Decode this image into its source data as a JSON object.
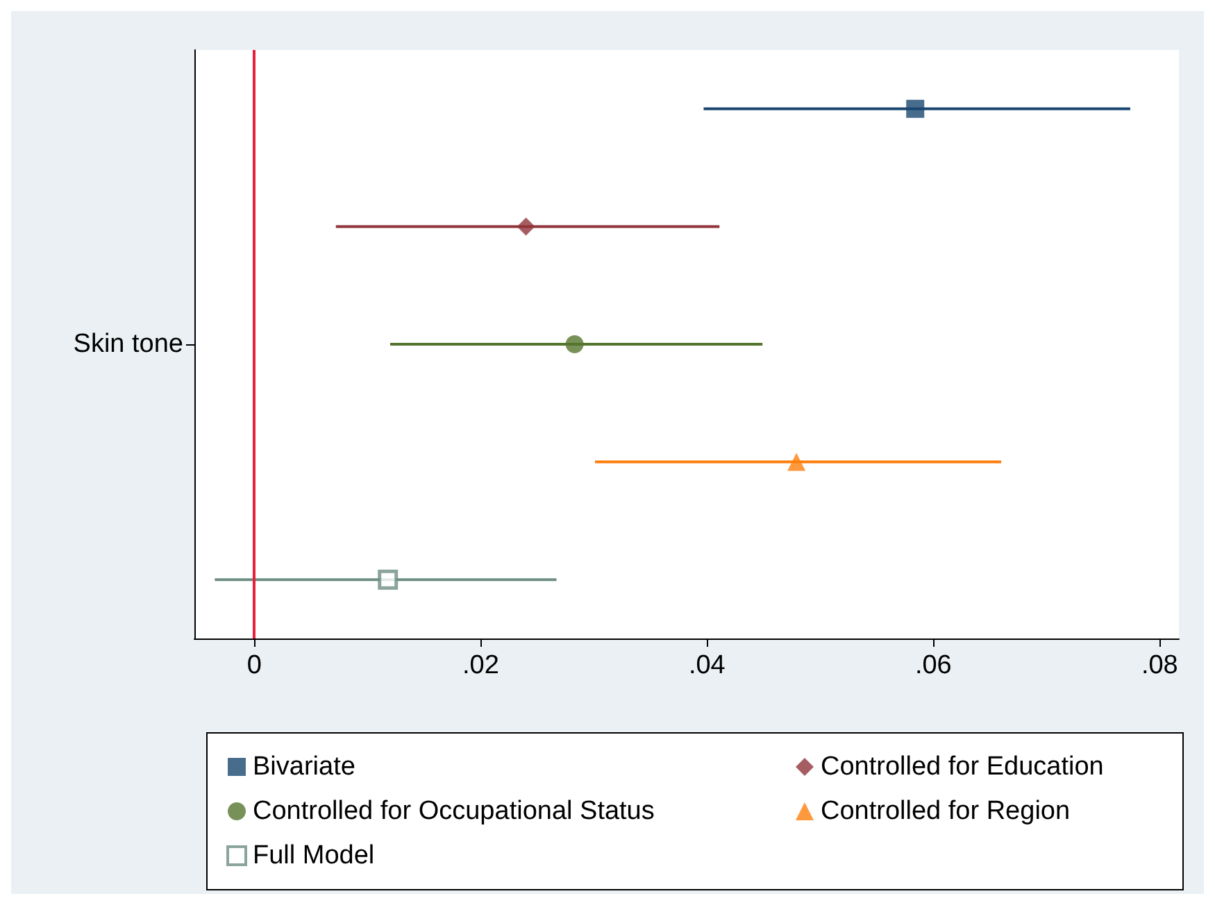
{
  "chart_data": {
    "type": "scatter",
    "orientation": "horizontal",
    "categories": [
      null,
      null,
      "Skin tone",
      null,
      null
    ],
    "series": [
      {
        "name": "Bivariate",
        "color": "#1a476f",
        "marker": "square",
        "values": [
          0.0584,
          null,
          null,
          null,
          null
        ],
        "errors": [
          [
            0.0397,
            0.0774
          ],
          null,
          null,
          null,
          null
        ]
      },
      {
        "name": "Controlled for Education",
        "color": "#90353b",
        "marker": "diamond",
        "values": [
          null,
          0.024,
          null,
          null,
          null
        ],
        "errors": [
          null,
          [
            0.0072,
            0.0411
          ],
          null,
          null,
          null
        ]
      },
      {
        "name": "Controlled for Occupational Status",
        "color": "#55752f",
        "marker": "circle",
        "values": [
          null,
          null,
          0.0283,
          null,
          null
        ],
        "errors": [
          null,
          null,
          [
            0.012,
            0.0449
          ],
          null,
          null
        ]
      },
      {
        "name": "Controlled for Region",
        "color": "#ff7f0e",
        "marker": "triangle",
        "values": [
          null,
          null,
          null,
          0.0479,
          null
        ],
        "errors": [
          null,
          null,
          null,
          [
            0.0301,
            0.066
          ],
          null
        ]
      },
      {
        "name": "Full Model",
        "color": "#6e8e84",
        "marker": "square",
        "values": [
          null,
          null,
          null,
          null,
          0.0118
        ],
        "errors": [
          null,
          null,
          null,
          null,
          [
            -0.0035,
            0.0267
          ]
        ]
      }
    ],
    "xlim": [
      -0.0053,
      0.0817
    ],
    "xticks": [
      0,
      {
        "value": 0.02,
        "label": ".02"
      },
      {
        "value": 0.04,
        "label": ".04"
      },
      {
        "value": 0.06,
        "label": ".06"
      },
      {
        "value": 0.08,
        "label": ".08"
      }
    ],
    "ref_lines": [
      {
        "axis": "x",
        "value": 0,
        "color": "#e8203a"
      }
    ],
    "grid": false,
    "legend": "bottom"
  }
}
